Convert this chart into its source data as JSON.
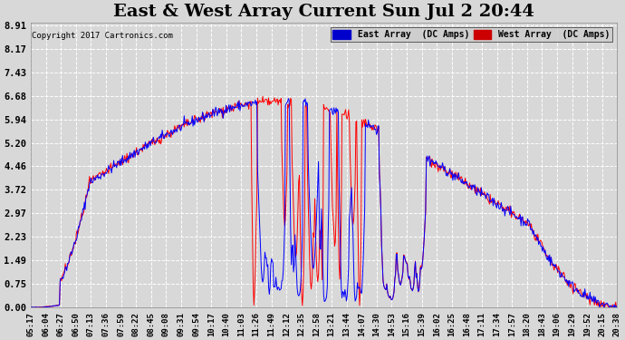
{
  "title": "East & West Array Current Sun Jul 2 20:44",
  "copyright": "Copyright 2017 Cartronics.com",
  "legend_east": "East Array  (DC Amps)",
  "legend_west": "West Array  (DC Amps)",
  "east_color": "#0000ff",
  "west_color": "#ff0000",
  "legend_east_bg": "#0000cc",
  "legend_west_bg": "#cc0000",
  "background_color": "#d8d8d8",
  "plot_bg_color": "#d8d8d8",
  "grid_color": "#ffffff",
  "title_fontsize": 14,
  "ylabel_values": [
    0.0,
    0.75,
    1.49,
    2.23,
    2.97,
    3.72,
    4.46,
    5.2,
    5.94,
    6.68,
    7.43,
    8.17,
    8.91
  ],
  "ylim": [
    0.0,
    9.0
  ],
  "xtick_labels": [
    "05:17",
    "06:04",
    "06:27",
    "06:50",
    "07:13",
    "07:36",
    "07:59",
    "08:22",
    "08:45",
    "09:08",
    "09:31",
    "09:54",
    "10:17",
    "10:40",
    "11:03",
    "11:26",
    "11:49",
    "12:12",
    "12:35",
    "12:58",
    "13:21",
    "13:44",
    "14:07",
    "14:30",
    "14:53",
    "15:16",
    "15:39",
    "16:02",
    "16:25",
    "16:48",
    "17:11",
    "17:34",
    "17:57",
    "18:20",
    "18:43",
    "19:06",
    "19:29",
    "19:52",
    "20:15",
    "20:38"
  ]
}
